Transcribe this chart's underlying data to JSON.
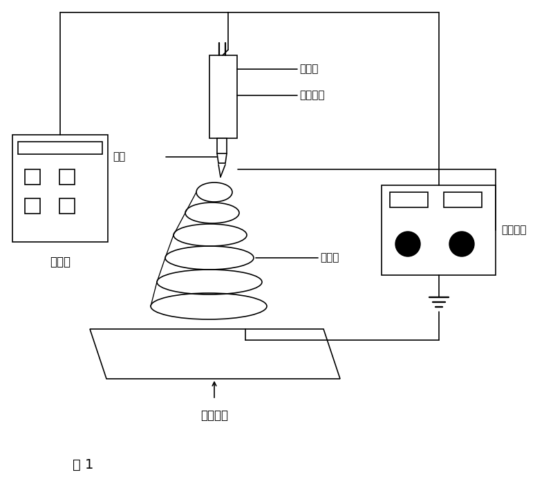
{
  "bg_color": "#ffffff",
  "fig_label": "图 1",
  "labels": {
    "injector": "注射器",
    "solution": "电纺溶液",
    "needle": "针头",
    "nanowire": "纳米线",
    "pusher": "推进器",
    "collector": "收集装置",
    "hv_power": "高压电源"
  },
  "line_color": "#000000",
  "lw": 1.2
}
